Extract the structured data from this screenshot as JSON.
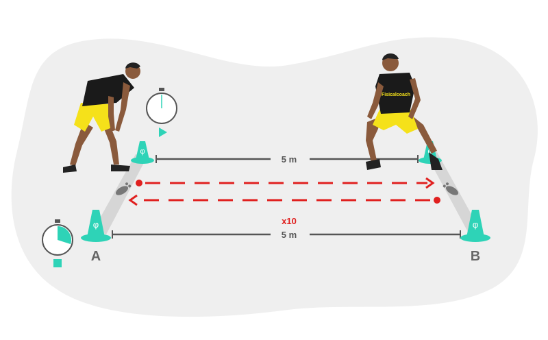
{
  "diagram": {
    "distance_top": "5 m",
    "distance_bottom": "5 m",
    "repetitions": "x10",
    "point_a": "A",
    "point_b": "B",
    "shirt_brand": "Fisicalcoach",
    "cone_symbol": "φ",
    "stopwatch_start_progress": 0,
    "stopwatch_end_progress": 0.3
  },
  "colors": {
    "background_blob": "#efefef",
    "cone": "#2ed3b7",
    "line": "#555555",
    "arrow": "#e0201f",
    "shirt": "#1a1a1a",
    "shorts": "#f5e11a",
    "skin": "#8a5a3c",
    "accent": "#2ed3b7"
  }
}
